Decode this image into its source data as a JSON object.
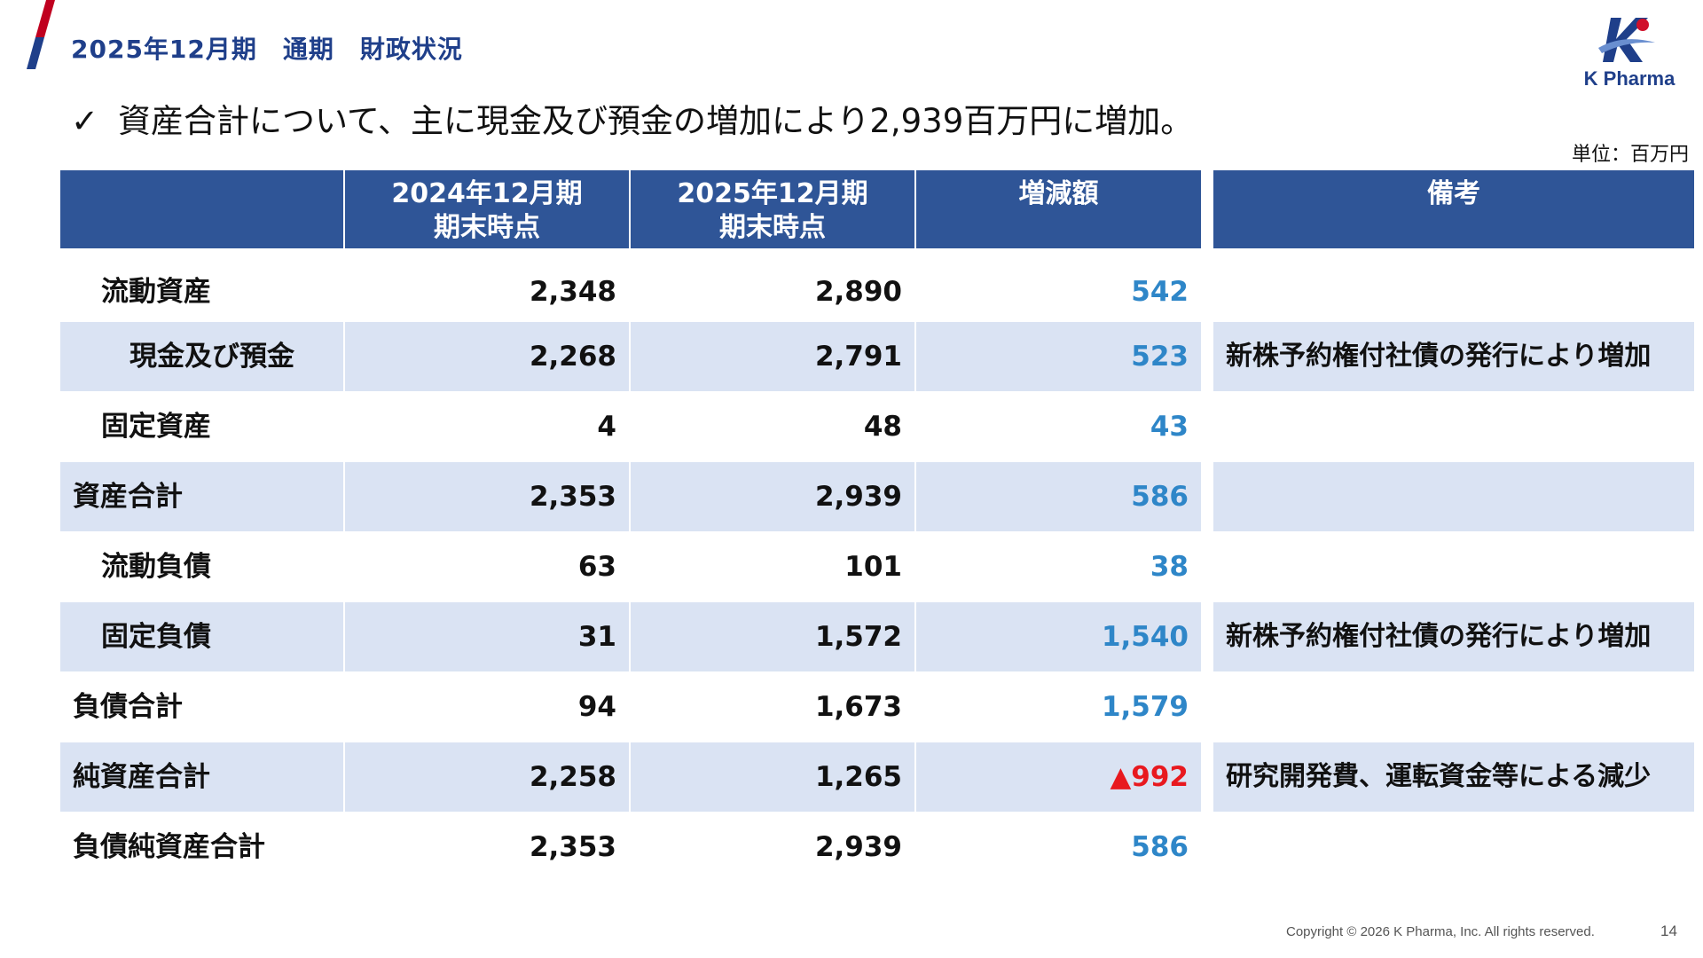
{
  "header": {
    "title": "2025年12月期　通期　財政状況",
    "logo_text": "K Pharma"
  },
  "summary": {
    "check_icon": "✓",
    "text": "資産合計について、主に現金及び預金の増加により2,939百万円に増加。"
  },
  "unit_label": "単位：百万円",
  "colors": {
    "header_bg": "#2f5597",
    "row_shade": "#dae3f3",
    "title": "#1f3f8a",
    "increase": "#2e86c8",
    "decrease": "#e8191f"
  },
  "table": {
    "columns": [
      {
        "line1": "",
        "line2": ""
      },
      {
        "line1": "2024年12月期",
        "line2": "期末時点"
      },
      {
        "line1": "2025年12月期",
        "line2": "期末時点"
      },
      {
        "line1": "増減額",
        "line2": ""
      },
      {
        "line1": "備考",
        "line2": ""
      }
    ],
    "rows": [
      {
        "label": "流動資産",
        "prev": "2,348",
        "curr": "2,890",
        "diff": "542",
        "note": ""
      },
      {
        "label": "現金及び預金",
        "prev": "2,268",
        "curr": "2,791",
        "diff": "523",
        "note": "新株予約権付社債の発行により増加"
      },
      {
        "label": "固定資産",
        "prev": "4",
        "curr": "48",
        "diff": "43",
        "note": ""
      },
      {
        "label": "資産合計",
        "prev": "2,353",
        "curr": "2,939",
        "diff": "586",
        "note": ""
      },
      {
        "label": "流動負債",
        "prev": "63",
        "curr": "101",
        "diff": "38",
        "note": ""
      },
      {
        "label": "固定負債",
        "prev": "31",
        "curr": "1,572",
        "diff": "1,540",
        "note": "新株予約権付社債の発行により増加"
      },
      {
        "label": "負債合計",
        "prev": "94",
        "curr": "1,673",
        "diff": "1,579",
        "note": ""
      },
      {
        "label": "純資産合計",
        "prev": "2,258",
        "curr": "1,265",
        "diff": "▲992",
        "note": "研究開発費、運転資金等による減少"
      },
      {
        "label": "負債純資産合計",
        "prev": "2,353",
        "curr": "2,939",
        "diff": "586",
        "note": ""
      }
    ]
  },
  "footer": {
    "copyright": "Copyright © 2026 K Pharma, Inc. All rights reserved.",
    "page_number": "14"
  }
}
